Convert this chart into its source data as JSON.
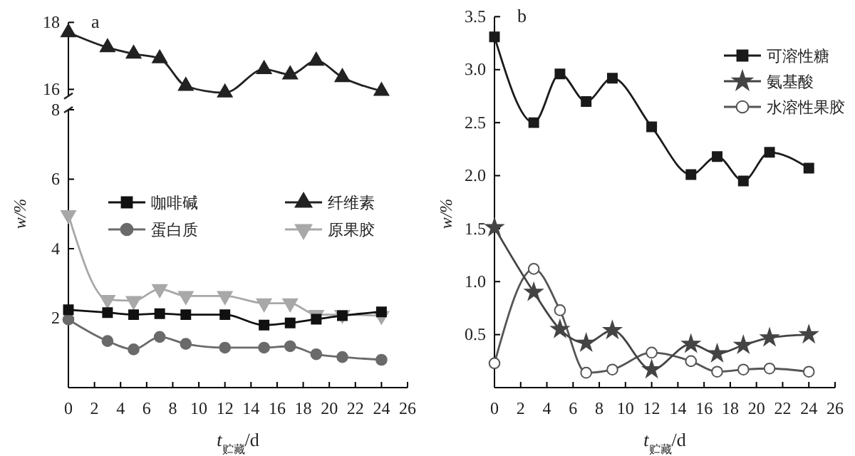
{
  "chart_data": [
    {
      "type": "line",
      "title": "a",
      "xlim": [
        0,
        26
      ],
      "ylim": [
        15.8,
        18
      ],
      "yticks": [
        16,
        18
      ],
      "tick_labels": "y",
      "legend": "bottom",
      "grid": false,
      "x": [
        0,
        3,
        5,
        7,
        9,
        12,
        15,
        17,
        19,
        21,
        24
      ],
      "series": [
        {
          "name": "纤维素",
          "color": "#222222",
          "marker": "triangle",
          "values": [
            17.7,
            17.25,
            17.06,
            16.92,
            16.1,
            15.9,
            16.6,
            16.44,
            16.85,
            16.36,
            15.95
          ]
        }
      ]
    },
    {
      "type": "line",
      "xlabel": "t$_{贮藏}$/d",
      "ylabel": "w/%",
      "xlim": [
        0,
        26
      ],
      "xticks": [
        0,
        2,
        4,
        6,
        8,
        10,
        12,
        14,
        16,
        18,
        20,
        22,
        24,
        26
      ],
      "ylim": [
        0,
        8
      ],
      "yticks": [
        2,
        4,
        6,
        8
      ],
      "legend": "top",
      "grid": false,
      "x": [
        0,
        3,
        5,
        7,
        9,
        12,
        15,
        17,
        19,
        21,
        24
      ],
      "series": [
        {
          "name": "咖啡碱",
          "color": "#111111",
          "marker": "square",
          "values": [
            2.24,
            2.16,
            2.1,
            2.13,
            2.1,
            2.1,
            1.8,
            1.86,
            1.97,
            2.07,
            2.18
          ]
        },
        {
          "name": "蛋白质",
          "color": "#6a6a6a",
          "marker": "circle",
          "values": [
            1.96,
            1.34,
            1.1,
            1.46,
            1.26,
            1.15,
            1.15,
            1.19,
            0.96,
            0.88,
            0.8
          ]
        },
        {
          "name": "原果胶",
          "color": "#a8a8a8",
          "marker": "triangle-down",
          "values": [
            4.97,
            2.53,
            2.5,
            2.84,
            2.64,
            2.64,
            2.43,
            2.43,
            2.1,
            2.1,
            2.07
          ]
        }
      ]
    },
    {
      "type": "line",
      "title": "b",
      "xlabel": "t$_{贮藏}$/d",
      "ylabel": "w/%",
      "xlim": [
        0,
        26
      ],
      "xticks": [
        0,
        2,
        4,
        6,
        8,
        10,
        12,
        14,
        16,
        18,
        20,
        22,
        24,
        26
      ],
      "ylim": [
        0,
        3.5
      ],
      "yticks": [
        {
          "value": 0.5,
          "label": "0.5"
        },
        {
          "value": 1,
          "label": "1.0"
        },
        {
          "value": 1.5,
          "label": "1.5"
        },
        {
          "value": 2,
          "label": "2.0"
        },
        {
          "value": 2.5,
          "label": "2.5"
        },
        {
          "value": 3,
          "label": "3.0"
        },
        {
          "value": 3.5,
          "label": "3.5"
        }
      ],
      "legend": "top right",
      "grid": false,
      "x": [
        0,
        3,
        5,
        7,
        9,
        12,
        15,
        17,
        19,
        21,
        24
      ],
      "series": [
        {
          "name": "可溶性糖",
          "color": "#1a1a1a",
          "marker": "square",
          "values": [
            3.31,
            2.5,
            2.96,
            2.7,
            2.92,
            2.46,
            2.01,
            2.18,
            1.95,
            2.22,
            2.07
          ]
        },
        {
          "name": "氨基酸",
          "color": "#444444",
          "marker": "star",
          "values": [
            1.51,
            0.9,
            0.55,
            0.42,
            0.54,
            0.17,
            0.41,
            0.32,
            0.4,
            0.47,
            0.5
          ]
        },
        {
          "name": "水溶性果胶",
          "color": "#555555",
          "marker": "circle",
          "values": [
            0.23,
            1.12,
            0.73,
            0.14,
            0.17,
            0.33,
            0.25,
            0.15,
            0.17,
            0.18,
            0.15
          ]
        }
      ]
    }
  ]
}
